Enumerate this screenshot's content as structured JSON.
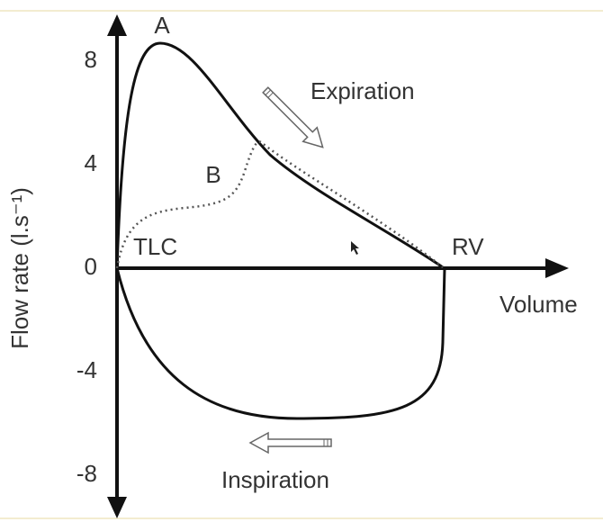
{
  "axes": {
    "y_label": "Flow rate (l.s⁻¹)",
    "x_label": "Volume",
    "yticks": [
      8,
      4,
      0,
      -4,
      -8
    ]
  },
  "labels": {
    "curve_a": "A",
    "curve_b": "B",
    "tlc": "TLC",
    "rv": "RV",
    "expiration": "Expiration",
    "inspiration": "Inspiration"
  }
}
